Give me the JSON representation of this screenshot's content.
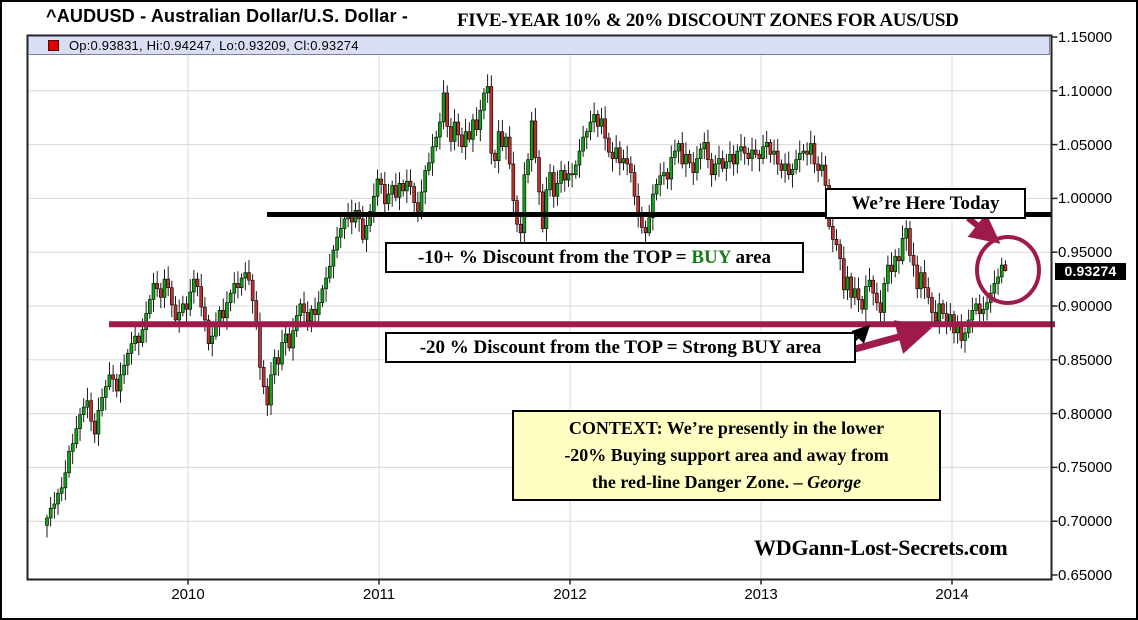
{
  "title": {
    "symbol_part": "^AUDUSD - Australian Dollar/U.S. Dollar - ",
    "annotation_part": "FIVE-YEAR 10% & 20% DISCOUNT ZONES FOR AUS/USD"
  },
  "legend": {
    "ohlc": "Op:0.93831, Hi:0.94247, Lo:0.93209, Cl:0.93274"
  },
  "price_label": "0.93274",
  "watermark": "WDGann-Lost-Secrets.com",
  "annotations": {
    "here_today": "We’re Here Today",
    "discount10_pre": "-10+ % Discount from the TOP = ",
    "discount10_buy": "BUY",
    "discount10_post": " area",
    "discount20": "-20 % Discount from the TOP = Strong BUY area",
    "context_line1": "CONTEXT: We’re presently in the lower",
    "context_line2": "-20% Buying support area and away from",
    "context_line3_pre": "the red-line Danger Zone. – ",
    "context_line3_name": "George"
  },
  "colors": {
    "up_candle": "#12a312",
    "down_candle": "#bf3030",
    "wick": "#000000",
    "grid": "#d8d8d8",
    "maroon_accent": "#9e1a4d",
    "top_line": "#000000",
    "legend_strip_bg": "#dadef2",
    "context_bg": "#ffffc4",
    "buy_text_green": "#167c16",
    "price_badge_bg": "#000000",
    "price_badge_text": "#ffffff"
  },
  "chart_data": {
    "type": "candlestick",
    "period": "weekly",
    "symbol": "AUDUSD",
    "title": "FIVE-YEAR 10% & 20% DISCOUNT ZONES FOR AUS/USD",
    "ylim": [
      0.65,
      1.15
    ],
    "grid": true,
    "y_tick_labels": [
      "1.15000",
      "1.10000",
      "1.05000",
      "1.00000",
      "0.95000",
      "0.90000",
      "0.85000",
      "0.80000",
      "0.75000",
      "0.70000",
      "0.65000"
    ],
    "y_tick_values": [
      1.15,
      1.1,
      1.05,
      1.0,
      0.95,
      0.9,
      0.85,
      0.8,
      0.75,
      0.7,
      0.65
    ],
    "x_tick_labels": [
      "2010",
      "2011",
      "2012",
      "2013",
      "2014"
    ],
    "levels": {
      "top_black_line": 0.985,
      "minus20_discount_maroon_line": 0.883
    },
    "last_candle": {
      "open": 0.93831,
      "high": 0.94247,
      "low": 0.93209,
      "close": 0.93274
    },
    "current_price": 0.93274,
    "first_open": 0.696,
    "weekly_closes": [
      0.703,
      0.712,
      0.716,
      0.726,
      0.731,
      0.745,
      0.765,
      0.772,
      0.786,
      0.799,
      0.806,
      0.812,
      0.793,
      0.781,
      0.803,
      0.815,
      0.825,
      0.836,
      0.832,
      0.821,
      0.836,
      0.845,
      0.856,
      0.865,
      0.872,
      0.866,
      0.878,
      0.893,
      0.906,
      0.921,
      0.916,
      0.908,
      0.925,
      0.917,
      0.901,
      0.887,
      0.894,
      0.902,
      0.897,
      0.913,
      0.925,
      0.918,
      0.899,
      0.887,
      0.865,
      0.872,
      0.884,
      0.896,
      0.889,
      0.903,
      0.912,
      0.921,
      0.917,
      0.926,
      0.931,
      0.924,
      0.905,
      0.882,
      0.843,
      0.825,
      0.808,
      0.836,
      0.852,
      0.846,
      0.866,
      0.874,
      0.861,
      0.877,
      0.891,
      0.902,
      0.894,
      0.886,
      0.897,
      0.892,
      0.903,
      0.916,
      0.926,
      0.937,
      0.952,
      0.964,
      0.972,
      0.981,
      0.987,
      0.978,
      0.989,
      0.981,
      0.962,
      0.975,
      0.988,
      1.002,
      1.018,
      1.013,
      0.995,
      1.004,
      1.012,
      1.001,
      1.014,
      1.007,
      1.016,
      1.011,
      0.996,
      0.988,
      1.006,
      1.026,
      1.033,
      1.048,
      1.057,
      1.071,
      1.098,
      1.067,
      1.053,
      1.071,
      1.059,
      1.048,
      1.062,
      1.055,
      1.073,
      1.064,
      1.082,
      1.098,
      1.104,
      1.042,
      1.035,
      1.062,
      1.048,
      1.057,
      1.032,
      0.998,
      0.976,
      0.968,
      1.022,
      1.036,
      1.072,
      1.038,
      1.006,
      0.972,
      1.008,
      1.024,
      1.002,
      1.014,
      1.026,
      1.017,
      1.023,
      1.022,
      1.031,
      1.044,
      1.057,
      1.062,
      1.071,
      1.078,
      1.067,
      1.074,
      1.056,
      1.043,
      1.037,
      1.047,
      1.033,
      1.037,
      1.032,
      1.024,
      1.002,
      0.984,
      0.973,
      0.968,
      0.982,
      1.004,
      1.013,
      1.021,
      1.024,
      1.018,
      1.038,
      1.044,
      1.051,
      1.032,
      1.041,
      1.033,
      1.024,
      1.037,
      1.046,
      1.052,
      1.036,
      1.022,
      1.032,
      1.037,
      1.028,
      1.034,
      1.041,
      1.032,
      1.044,
      1.048,
      1.042,
      1.037,
      1.045,
      1.041,
      1.037,
      1.048,
      1.052,
      1.041,
      1.044,
      1.032,
      1.026,
      1.032,
      1.022,
      1.027,
      1.036,
      1.042,
      1.044,
      1.041,
      1.051,
      1.032,
      1.026,
      1.031,
      1.012,
      0.974,
      0.962,
      0.957,
      0.944,
      0.915,
      0.927,
      0.908,
      0.916,
      0.906,
      0.897,
      0.918,
      0.924,
      0.912,
      0.903,
      0.894,
      0.921,
      0.938,
      0.932,
      0.946,
      0.942,
      0.963,
      0.972,
      0.947,
      0.938,
      0.916,
      0.931,
      0.917,
      0.908,
      0.894,
      0.886,
      0.902,
      0.893,
      0.885,
      0.892,
      0.875,
      0.881,
      0.868,
      0.875,
      0.887,
      0.896,
      0.902,
      0.893,
      0.897,
      0.903,
      0.912,
      0.921,
      0.927,
      0.938,
      0.93274
    ]
  }
}
